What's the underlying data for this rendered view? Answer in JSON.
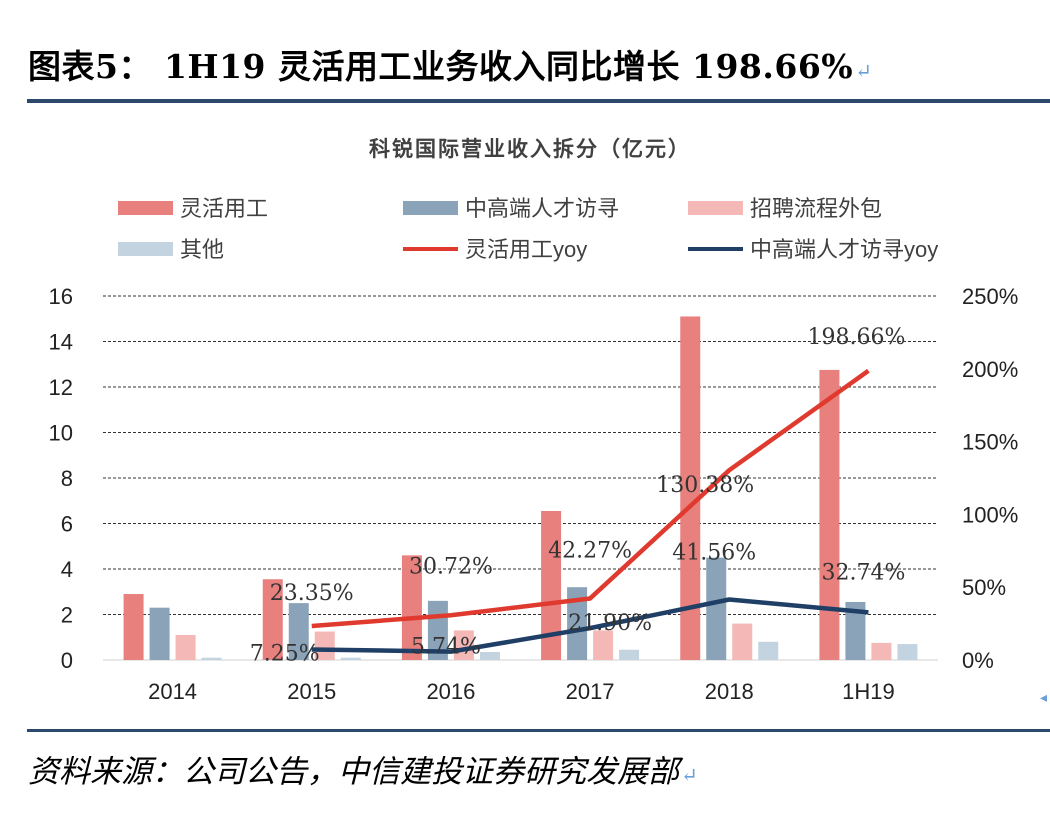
{
  "figure": {
    "title": "图表5： 1H19 灵活用工业务收入同比增长 198.66%",
    "return_mark": "↵",
    "source": "资料来源：公司公告，中信建投证券研究发展部",
    "rule_color": "#2b4a6b"
  },
  "chart_data": {
    "type": "bar",
    "title": "科锐国际营业收入拆分（亿元）",
    "categories": [
      "2014",
      "2015",
      "2016",
      "2017",
      "2018",
      "1H19"
    ],
    "ylim": [
      0,
      16
    ],
    "yticks": [
      "0",
      "2",
      "4",
      "6",
      "8",
      "10",
      "12",
      "14",
      "16"
    ],
    "y2lim": [
      0,
      2.5
    ],
    "y2ticks": [
      "0%",
      "50%",
      "100%",
      "150%",
      "200%",
      "250%"
    ],
    "grid": "dashed horizontal",
    "legend_position": "top",
    "bar_series": [
      {
        "name": "灵活用工",
        "color": "#e8807e",
        "values": [
          2.9,
          3.55,
          4.6,
          6.55,
          15.1,
          12.75
        ]
      },
      {
        "name": "中高端人才访寻",
        "color": "#8aa3b8",
        "values": [
          2.3,
          2.5,
          2.6,
          3.2,
          4.5,
          2.55
        ]
      },
      {
        "name": "招聘流程外包",
        "color": "#f4b8b6",
        "values": [
          1.1,
          1.25,
          1.3,
          1.3,
          1.6,
          0.75
        ]
      },
      {
        "name": "其他",
        "color": "#c3d3e0",
        "values": [
          0.1,
          0.1,
          0.35,
          0.45,
          0.8,
          0.7
        ]
      }
    ],
    "line_series": [
      {
        "name": "灵活用工yoy",
        "color": "#e03a2f",
        "values": [
          null,
          0.2335,
          0.3072,
          0.4227,
          1.3038,
          1.9866
        ],
        "labels": [
          null,
          "23.35%",
          "30.72%",
          "42.27%",
          "130.38%",
          "198.66%"
        ]
      },
      {
        "name": "中高端人才访寻yoy",
        "color": "#1f3f66",
        "values": [
          null,
          0.0725,
          0.0574,
          0.219,
          0.4156,
          0.3274
        ],
        "labels": [
          null,
          "7.25%",
          "5.74%",
          "21.90%",
          "41.56%",
          "32.74%"
        ]
      }
    ]
  }
}
